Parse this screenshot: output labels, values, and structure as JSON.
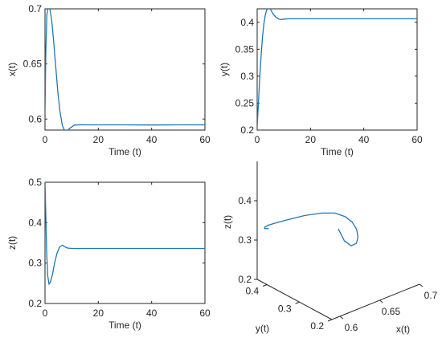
{
  "chart_data": [
    {
      "type": "line",
      "id": "x",
      "xlabel": "Time (t)",
      "ylabel": "x(t)",
      "xlim": [
        0,
        60
      ],
      "ylim": [
        0.59,
        0.7
      ],
      "xticks": [
        "0",
        "20",
        "40",
        "60"
      ],
      "yticks": [
        "0.6",
        "0.65",
        "0.7"
      ],
      "series": [
        {
          "color": "#1f77b4",
          "x": [
            0,
            0.3,
            0.7,
            1.2,
            1.8,
            2.5,
            3.2,
            4.0,
            4.8,
            5.6,
            6.5,
            7.3,
            8.2,
            9.5,
            11,
            13,
            16,
            20,
            30,
            40,
            50,
            60
          ],
          "y": [
            0.605,
            0.66,
            0.695,
            0.702,
            0.7,
            0.69,
            0.672,
            0.648,
            0.625,
            0.607,
            0.594,
            0.59,
            0.589,
            0.592,
            0.5945,
            0.5948,
            0.5947,
            0.5947,
            0.5947,
            0.5946,
            0.5947,
            0.5947
          ]
        }
      ]
    },
    {
      "type": "line",
      "id": "y",
      "xlabel": "Time (t)",
      "ylabel": "y(t)",
      "xlim": [
        0,
        60
      ],
      "ylim": [
        0.2,
        0.425
      ],
      "xticks": [
        "0",
        "20",
        "40",
        "60"
      ],
      "yticks": [
        "0.2",
        "0.25",
        "0.3",
        "0.35",
        "0.4"
      ],
      "series": [
        {
          "color": "#1f77b4",
          "x": [
            0,
            0.5,
            1.0,
            1.5,
            2.0,
            2.5,
            3.0,
            3.5,
            4.0,
            4.5,
            5.0,
            5.5,
            6.0,
            7.0,
            8.0,
            9.0,
            10,
            12,
            15,
            20,
            30,
            40,
            50,
            60
          ],
          "y": [
            0.205,
            0.255,
            0.3,
            0.34,
            0.372,
            0.396,
            0.412,
            0.422,
            0.426,
            0.426,
            0.424,
            0.42,
            0.415,
            0.41,
            0.406,
            0.405,
            0.406,
            0.4065,
            0.4065,
            0.4065,
            0.4065,
            0.4065,
            0.4065,
            0.4065
          ]
        }
      ]
    },
    {
      "type": "line",
      "id": "z",
      "xlabel": "Time (t)",
      "ylabel": "z(t)",
      "xlim": [
        0,
        60
      ],
      "ylim": [
        0.2,
        0.5
      ],
      "xticks": [
        "0",
        "20",
        "40",
        "60"
      ],
      "yticks": [
        "0.2",
        "0.3",
        "0.4",
        "0.5"
      ],
      "series": [
        {
          "color": "#1f77b4",
          "x": [
            0,
            0.3,
            0.6,
            1.0,
            1.5,
            2.0,
            2.8,
            3.6,
            4.5,
            5.5,
            6.5,
            7.5,
            8.5,
            10,
            12,
            15,
            20,
            30,
            40,
            50,
            60
          ],
          "y": [
            0.5,
            0.42,
            0.33,
            0.27,
            0.248,
            0.252,
            0.272,
            0.3,
            0.324,
            0.34,
            0.344,
            0.34,
            0.337,
            0.336,
            0.336,
            0.336,
            0.336,
            0.336,
            0.336,
            0.336,
            0.336
          ]
        }
      ]
    },
    {
      "type": "line3d",
      "id": "phase",
      "xlabel": "x(t)",
      "ylabel": "y(t)",
      "zlabel": "z(t)",
      "xlim": [
        0.59,
        0.7
      ],
      "ylim": [
        0.2,
        0.43
      ],
      "zlim": [
        0.2,
        0.5
      ],
      "xticks": [
        "0.6",
        "0.65",
        "0.7"
      ],
      "yticks": [
        "0.2",
        "0.3",
        "0.4"
      ],
      "zticks": [
        "0.2",
        "0.3",
        "0.4"
      ],
      "series": [
        {
          "color": "#1f77b4",
          "x": [
            0.6,
            0.628,
            0.655,
            0.678,
            0.693,
            0.701,
            0.702,
            0.697,
            0.686,
            0.67,
            0.648,
            0.625,
            0.607,
            0.595,
            0.59,
            0.589,
            0.592,
            0.5947
          ],
          "y": [
            0.205,
            0.255,
            0.3,
            0.34,
            0.372,
            0.396,
            0.412,
            0.422,
            0.426,
            0.426,
            0.424,
            0.42,
            0.415,
            0.41,
            0.406,
            0.405,
            0.406,
            0.4065
          ],
          "z": [
            0.42,
            0.345,
            0.29,
            0.26,
            0.25,
            0.252,
            0.262,
            0.276,
            0.292,
            0.305,
            0.318,
            0.328,
            0.336,
            0.342,
            0.344,
            0.341,
            0.338,
            0.336
          ]
        }
      ]
    }
  ]
}
